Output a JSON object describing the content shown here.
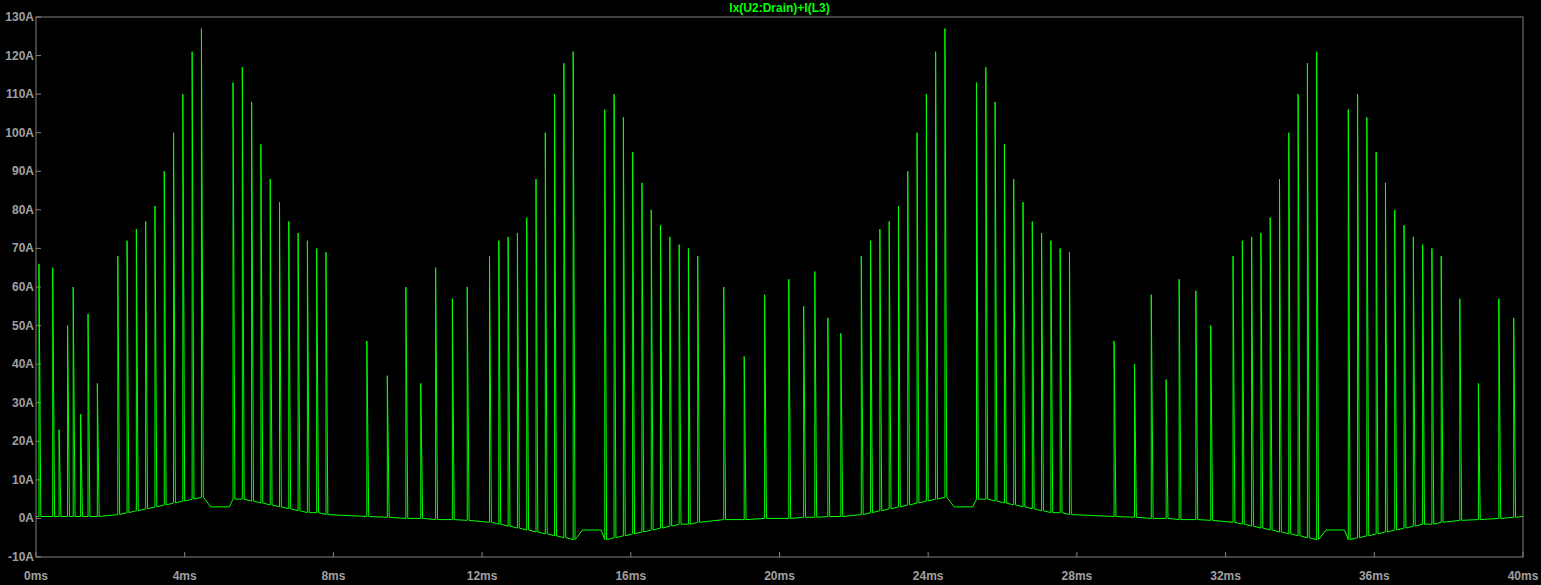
{
  "chart_data": {
    "type": "line",
    "title": "Ix(U2:Drain)+I(L3)",
    "xlim": [
      0,
      40
    ],
    "xticks": [
      {
        "value": 0,
        "label": "0ms"
      },
      {
        "value": 4,
        "label": "4ms"
      },
      {
        "value": 8,
        "label": "8ms"
      },
      {
        "value": 12,
        "label": "12ms"
      },
      {
        "value": 16,
        "label": "16ms"
      },
      {
        "value": 20,
        "label": "20ms"
      },
      {
        "value": 24,
        "label": "24ms"
      },
      {
        "value": 28,
        "label": "28ms"
      },
      {
        "value": 32,
        "label": "32ms"
      },
      {
        "value": 36,
        "label": "36ms"
      },
      {
        "value": 40,
        "label": "40ms"
      }
    ],
    "ylim": [
      -10,
      130
    ],
    "yticks": [
      {
        "value": -10,
        "label": "-10A"
      },
      {
        "value": 0,
        "label": "0A"
      },
      {
        "value": 10,
        "label": "10A"
      },
      {
        "value": 20,
        "label": "20A"
      },
      {
        "value": 30,
        "label": "30A"
      },
      {
        "value": 40,
        "label": "40A"
      },
      {
        "value": 50,
        "label": "50A"
      },
      {
        "value": 60,
        "label": "60A"
      },
      {
        "value": 70,
        "label": "70A"
      },
      {
        "value": 80,
        "label": "80A"
      },
      {
        "value": 90,
        "label": "90A"
      },
      {
        "value": 100,
        "label": "100A"
      },
      {
        "value": 110,
        "label": "110A"
      },
      {
        "value": 120,
        "label": "120A"
      },
      {
        "value": 130,
        "label": "130A"
      }
    ],
    "grid": false,
    "series": [
      {
        "name": "Ix(U2:Drain)+I(L3)",
        "color": "#00ff00",
        "x": [
          0,
          0.08,
          0.08,
          0.13,
          0.45,
          0.45,
          0.5,
          0.62,
          0.62,
          0.67,
          0.85,
          0.85,
          0.9,
          1.0,
          1.0,
          1.05,
          1.2,
          1.2,
          1.25,
          1.4,
          1.4,
          1.45,
          1.65,
          1.65,
          1.7,
          2.2,
          2.2,
          2.25,
          2.45,
          2.45,
          2.5,
          2.7,
          2.7,
          2.75,
          2.95,
          2.95,
          3,
          3.2,
          3.2,
          3.25,
          3.45,
          3.45,
          3.5,
          3.7,
          3.7,
          3.75,
          3.95,
          3.95,
          4,
          4.2,
          4.2,
          4.25,
          4.45,
          4.45,
          4.5,
          4.7,
          5.2,
          5.3,
          5.3,
          5.35,
          5.55,
          5.55,
          5.6,
          5.8,
          5.8,
          5.85,
          6.05,
          6.05,
          6.1,
          6.3,
          6.3,
          6.35,
          6.55,
          6.55,
          6.6,
          6.8,
          6.8,
          6.85,
          7.05,
          7.05,
          7.1,
          7.3,
          7.3,
          7.35,
          7.55,
          7.55,
          7.6,
          7.8,
          7.8,
          7.85,
          8.9,
          8.9,
          8.95,
          9.45,
          9.45,
          9.5,
          9.95,
          9.95,
          10,
          10.35,
          10.35,
          10.4,
          10.75,
          10.75,
          10.8,
          11.2,
          11.2,
          11.25,
          11.6,
          11.6,
          11.65,
          12.2,
          12.2,
          12.25,
          12.45,
          12.45,
          12.5,
          12.7,
          12.7,
          12.75,
          12.95,
          12.95,
          13,
          13.2,
          13.2,
          13.25,
          13.45,
          13.45,
          13.5,
          13.7,
          13.7,
          13.75,
          13.95,
          13.95,
          14,
          14.2,
          14.2,
          14.25,
          14.45,
          14.45,
          14.5,
          14.7,
          15.2,
          15.3,
          15.3,
          15.35,
          15.55,
          15.55,
          15.6,
          15.8,
          15.8,
          15.85,
          16.05,
          16.05,
          16.1,
          16.3,
          16.3,
          16.35,
          16.55,
          16.55,
          16.6,
          16.8,
          16.8,
          16.85,
          17.05,
          17.05,
          17.1,
          17.3,
          17.3,
          17.35,
          17.55,
          17.55,
          17.6,
          17.8,
          17.8,
          17.85,
          18.5,
          18.5,
          18.55,
          19.05,
          19.05,
          19.1,
          19.6,
          19.6,
          19.65,
          20.25,
          20.25,
          20.3,
          20.65,
          20.65,
          20.7,
          20.95,
          20.95,
          21,
          21.3,
          21.3,
          21.35,
          21.65,
          21.65,
          21.7,
          22.2,
          22.2,
          22.25,
          22.45,
          22.45,
          22.5,
          22.7,
          22.7,
          22.75,
          22.95,
          22.95,
          23,
          23.2,
          23.2,
          23.25,
          23.45,
          23.45,
          23.5,
          23.7,
          23.7,
          23.75,
          23.95,
          23.95,
          24,
          24.2,
          24.2,
          24.25,
          24.45,
          24.45,
          24.5,
          24.7,
          25.2,
          25.3,
          25.3,
          25.35,
          25.55,
          25.55,
          25.6,
          25.8,
          25.8,
          25.85,
          26.05,
          26.05,
          26.1,
          26.3,
          26.3,
          26.35,
          26.55,
          26.55,
          26.6,
          26.8,
          26.8,
          26.85,
          27.05,
          27.05,
          27.1,
          27.3,
          27.3,
          27.35,
          27.55,
          27.55,
          27.6,
          27.8,
          27.8,
          27.85,
          29.0,
          29.0,
          29.05,
          29.55,
          29.55,
          29.6,
          30.0,
          30.0,
          30.05,
          30.4,
          30.4,
          30.45,
          30.75,
          30.75,
          30.8,
          31.2,
          31.2,
          31.25,
          31.6,
          31.6,
          31.65,
          32.2,
          32.2,
          32.25,
          32.45,
          32.45,
          32.5,
          32.7,
          32.7,
          32.75,
          32.95,
          32.95,
          33,
          33.2,
          33.2,
          33.25,
          33.45,
          33.45,
          33.5,
          33.7,
          33.7,
          33.75,
          33.95,
          33.95,
          34,
          34.2,
          34.2,
          34.25,
          34.45,
          34.45,
          34.5,
          34.7,
          35.2,
          35.3,
          35.3,
          35.35,
          35.55,
          35.55,
          35.6,
          35.8,
          35.8,
          35.85,
          36.05,
          36.05,
          36.1,
          36.3,
          36.3,
          36.35,
          36.55,
          36.55,
          36.6,
          36.8,
          36.8,
          36.85,
          37.05,
          37.05,
          37.1,
          37.3,
          37.3,
          37.35,
          37.55,
          37.55,
          37.6,
          37.8,
          37.8,
          37.85,
          38.3,
          38.3,
          38.35,
          38.8,
          38.8,
          38.85,
          39.35,
          39.35,
          39.4,
          39.75,
          39.75,
          39.8,
          40
        ],
        "values": [
          0.5,
          0.5,
          66,
          0.5,
          0.5,
          65,
          0.5,
          0.5,
          23,
          0.5,
          0.5,
          50,
          0.5,
          0.5,
          60,
          0.5,
          0.5,
          27,
          0.5,
          0.5,
          53,
          0.5,
          0.5,
          35,
          0.5,
          1,
          68,
          1,
          1.5,
          72,
          1.5,
          2,
          75,
          2,
          2.5,
          77,
          2.5,
          3,
          81,
          3,
          3.5,
          90,
          3.5,
          4,
          100,
          4,
          4.5,
          110,
          4.5,
          5,
          121,
          5,
          5.5,
          127,
          5.5,
          3,
          3,
          5,
          113,
          5,
          5,
          117,
          5,
          4.5,
          108,
          4.5,
          4,
          97,
          4,
          3.5,
          88,
          3.5,
          3,
          82,
          3,
          2.5,
          77,
          2.5,
          2,
          74,
          2,
          1.5,
          72,
          1.5,
          1.5,
          70,
          1.5,
          1,
          69,
          1,
          0.5,
          46,
          0.5,
          0.3,
          37,
          0.3,
          0,
          60,
          0,
          0,
          35,
          0,
          -0.3,
          65,
          -0.3,
          -0.3,
          57,
          -0.3,
          -0.5,
          60,
          -0.5,
          -1,
          68,
          -1,
          -1.5,
          72,
          -1.5,
          -2,
          73,
          -2,
          -2.5,
          74,
          -2.5,
          -3,
          78,
          -3,
          -3.5,
          88,
          -3.5,
          -4,
          100,
          -4,
          -4.5,
          110,
          -4.5,
          -5,
          118,
          -5,
          -5.5,
          121,
          -5.5,
          -3,
          -3,
          -5.5,
          106,
          -5.5,
          -5,
          110,
          -5,
          -4.5,
          104,
          -4.5,
          -4,
          95,
          -4,
          -3.5,
          87,
          -3.5,
          -3,
          80,
          -3,
          -2.5,
          76,
          -2.5,
          -2,
          73,
          -2,
          -1.5,
          71,
          -1.5,
          -1.5,
          70,
          -1.5,
          -1,
          68,
          -1,
          -0.3,
          60,
          -0.3,
          -0.3,
          42,
          -0.3,
          0,
          58,
          0,
          0,
          62,
          0,
          0.3,
          55,
          0.3,
          0.3,
          64,
          0.3,
          0.5,
          52,
          0.5,
          0.5,
          48,
          0.5,
          1,
          68,
          1,
          1.5,
          72,
          1.5,
          2,
          75,
          2,
          2.5,
          77,
          2.5,
          3,
          81,
          3,
          3.5,
          90,
          3.5,
          4,
          100,
          4,
          4.5,
          110,
          4.5,
          5,
          121,
          5,
          5.5,
          127,
          5.5,
          3,
          3,
          5,
          113,
          5,
          5,
          117,
          5,
          4.5,
          108,
          4.5,
          4,
          97,
          4,
          3.5,
          88,
          3.5,
          3,
          82,
          3,
          2.5,
          77,
          2.5,
          2,
          74,
          2,
          1.5,
          72,
          1.5,
          1.5,
          70,
          1.5,
          1,
          69,
          1,
          0.5,
          46,
          0.5,
          0.3,
          40,
          0.3,
          0,
          58,
          0,
          0,
          36,
          0,
          -0.3,
          62,
          -0.3,
          -0.3,
          59,
          -0.3,
          -0.5,
          50,
          -0.5,
          -1,
          68,
          -1,
          -1.5,
          72,
          -1.5,
          -2,
          73,
          -2,
          -2.5,
          74,
          -2.5,
          -3,
          78,
          -3,
          -3.5,
          88,
          -3.5,
          -4,
          100,
          -4,
          -4.5,
          110,
          -4.5,
          -5,
          118,
          -5,
          -5.5,
          121,
          -5.5,
          -3,
          -3,
          -5.5,
          106,
          -5.5,
          -5,
          110,
          -5,
          -4.5,
          104,
          -4.5,
          -4,
          95,
          -4,
          -3.5,
          87,
          -3.5,
          -3,
          80,
          -3,
          -2.5,
          76,
          -2.5,
          -2,
          73,
          -2,
          -1.5,
          71,
          -1.5,
          -1.5,
          70,
          -1.5,
          -1,
          68,
          -1,
          -0.5,
          57,
          -0.5,
          -0.3,
          35,
          -0.3,
          0,
          57,
          0,
          0.3,
          52,
          0.3,
          0.5
        ]
      }
    ]
  }
}
